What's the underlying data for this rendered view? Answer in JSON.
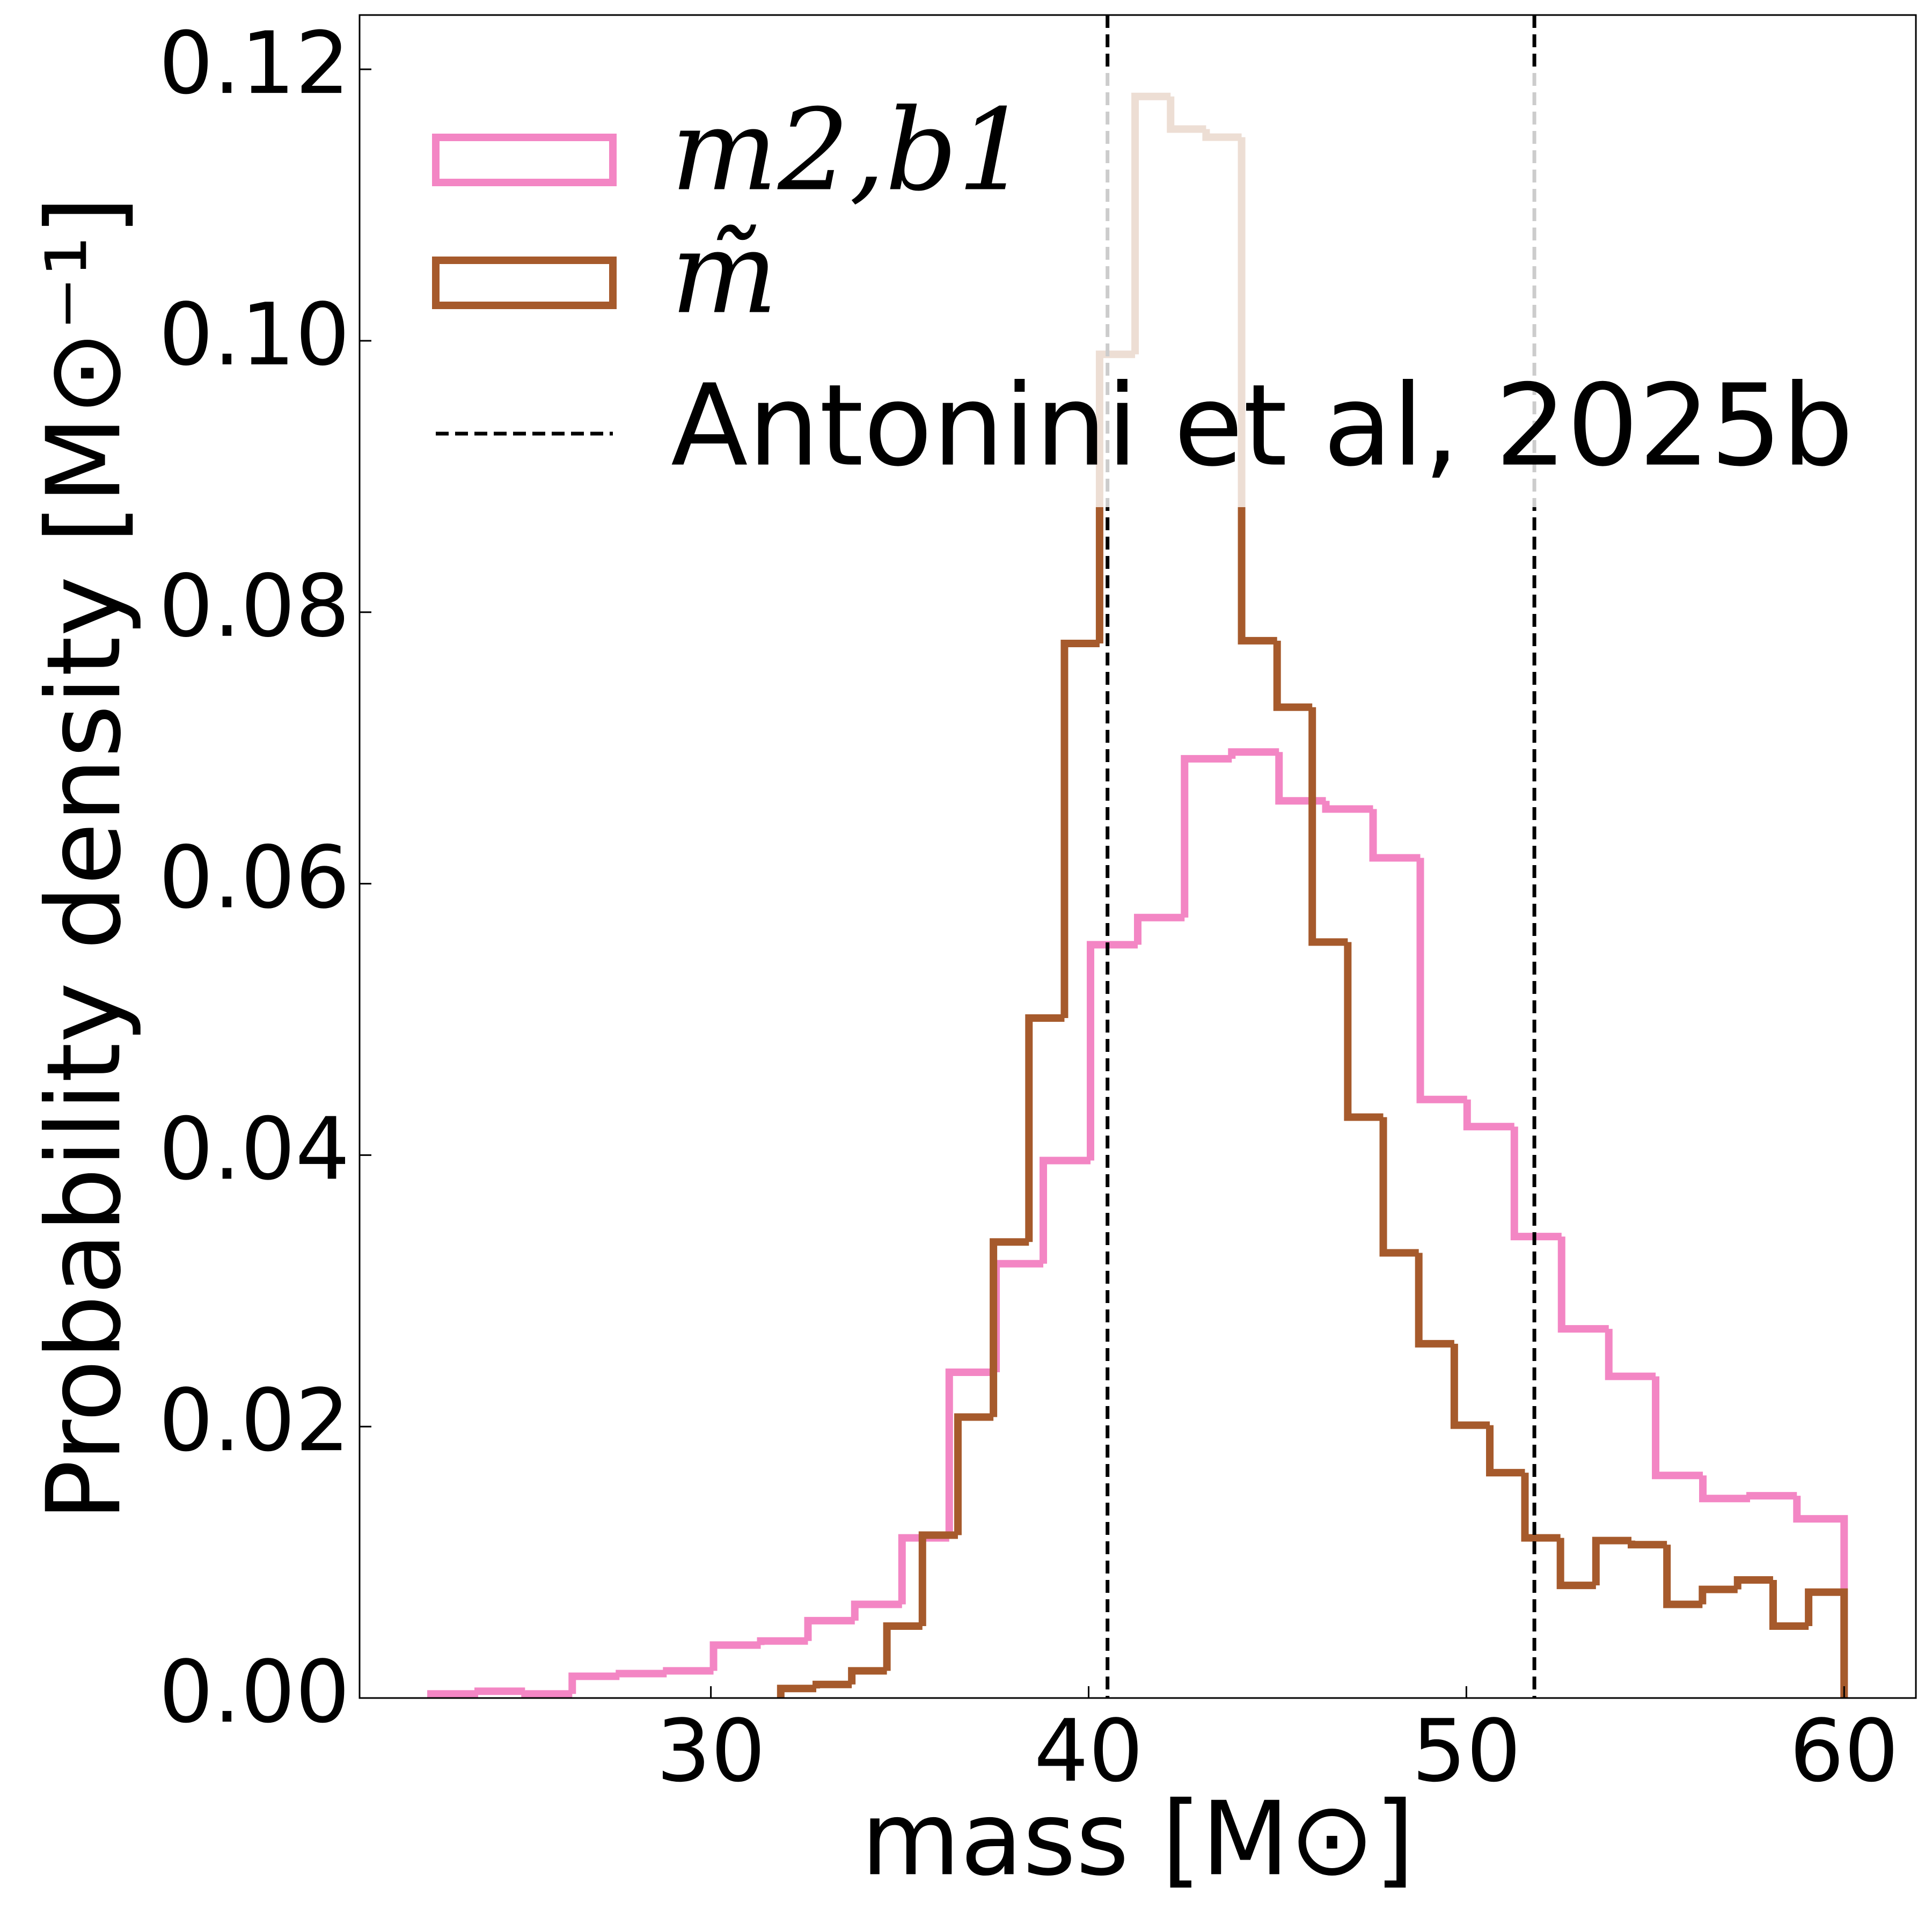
{
  "chart_data": {
    "type": "histogram",
    "xlabel": "mass [M⊙]",
    "ylabel": "Probability density [M⊙⁻¹]",
    "xlim": [
      20.7,
      61.9
    ],
    "ylim": [
      0,
      0.124
    ],
    "xticks": [
      30,
      40,
      50,
      60
    ],
    "yticks": [
      {
        "value": 0,
        "label": "0.00"
      },
      {
        "value": 0.02,
        "label": "0.02"
      },
      {
        "value": 0.04,
        "label": "0.04"
      },
      {
        "value": 0.06,
        "label": "0.06"
      },
      {
        "value": 0.08,
        "label": "0.08"
      },
      {
        "value": 0.1,
        "label": "0.10"
      },
      {
        "value": 0.12,
        "label": "0.12"
      }
    ],
    "legend": "upper left",
    "series": [
      {
        "name": "m2,b1",
        "color": "#f386c4",
        "bins": [
          22.59,
          23.84,
          25.08,
          26.33,
          27.58,
          28.83,
          30.07,
          31.32,
          32.57,
          33.81,
          35.06,
          36.31,
          37.55,
          38.8,
          40.05,
          41.3,
          42.54,
          43.79,
          45.04,
          46.28,
          47.53,
          48.78,
          50.02,
          51.27,
          52.52,
          53.77,
          55.01,
          56.26,
          57.51,
          58.75,
          60.0
        ],
        "values": [
          0.0003,
          0.0005,
          0.0003,
          0.0016,
          0.0018,
          0.002,
          0.0039,
          0.0042,
          0.0057,
          0.0069,
          0.0118,
          0.024,
          0.032,
          0.0396,
          0.0555,
          0.0575,
          0.0692,
          0.0697,
          0.0661,
          0.0655,
          0.0619,
          0.0441,
          0.0421,
          0.034,
          0.0272,
          0.0237,
          0.0164,
          0.0147,
          0.0149,
          0.0132
        ]
      },
      {
        "name": "m̃",
        "color": "#a65a2c",
        "bins": [
          31.85,
          32.79,
          33.73,
          34.66,
          35.6,
          36.54,
          37.48,
          38.42,
          39.36,
          40.29,
          41.23,
          42.17,
          43.11,
          44.05,
          44.99,
          45.92,
          46.86,
          47.8,
          48.74,
          49.68,
          50.62,
          51.55,
          52.49,
          53.43,
          54.37,
          55.31,
          56.25,
          57.18,
          58.12,
          59.06,
          60.0
        ],
        "values": [
          0.0007,
          0.001,
          0.002,
          0.0053,
          0.012,
          0.0207,
          0.0336,
          0.0501,
          0.0777,
          0.099,
          0.118,
          0.1156,
          0.115,
          0.0779,
          0.073,
          0.0557,
          0.0428,
          0.0328,
          0.0261,
          0.0201,
          0.0166,
          0.0118,
          0.0083,
          0.0116,
          0.0113,
          0.0069,
          0.008,
          0.0087,
          0.0053,
          0.0078
        ]
      }
    ],
    "vlines": {
      "name": "Antonini et al, 2025b",
      "color": "#000000",
      "x": [
        40.5,
        51.8
      ]
    }
  }
}
